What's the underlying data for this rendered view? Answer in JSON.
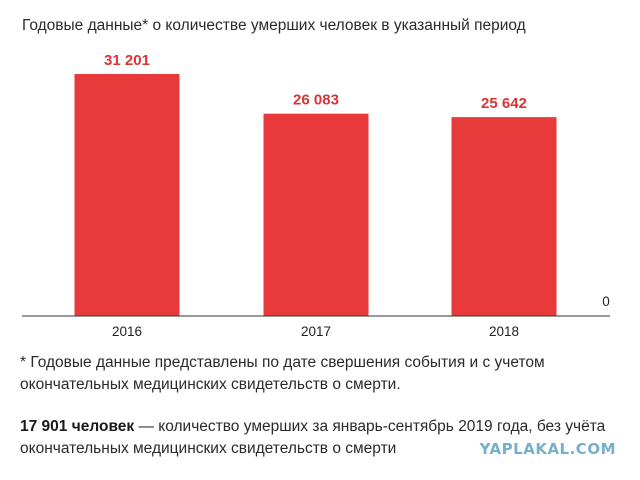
{
  "chart_data": {
    "type": "bar",
    "title": "Годовые данные* о количестве умерших человек в указанный период",
    "categories": [
      "2016",
      "2017",
      "2018"
    ],
    "values": [
      31201,
      26083,
      25642
    ],
    "value_labels": [
      "31 201",
      "26 083",
      "25 642"
    ],
    "ylim": [
      0,
      33000
    ],
    "zero_label": "0",
    "grid": false,
    "bar_color": "#e8393b",
    "label_color": "#d93436"
  },
  "footnote": "* Годовые данные представлены по дате свершения события и с учетом окончательных медицинских свидетельств о смерти.",
  "summary": {
    "bold": "17 901 человек",
    "text": " — количество умерших за январь-сентябрь 2019 года, без учёта окончательных медицинских свидетельств о смерти"
  },
  "watermark": "YAPLAKAL.COM"
}
